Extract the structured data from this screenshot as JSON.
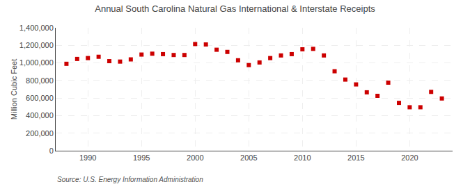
{
  "chart_data": {
    "type": "scatter",
    "title": "Annual South Carolina Natural Gas International & Interstate Receipts",
    "ylabel": "Million Cubic Feet",
    "annotations": [
      "Source: U.S. Energy Information Administration"
    ],
    "x": [
      1988,
      1989,
      1990,
      1991,
      1992,
      1993,
      1994,
      1995,
      1996,
      1997,
      1998,
      1999,
      2000,
      2001,
      2002,
      2003,
      2004,
      2005,
      2006,
      2007,
      2008,
      2009,
      2010,
      2011,
      2012,
      2013,
      2014,
      2015,
      2016,
      2017,
      2018,
      2019,
      2020,
      2021,
      2022,
      2023
    ],
    "values": [
      990000,
      1045000,
      1055000,
      1070000,
      1020000,
      1015000,
      1040000,
      1095000,
      1105000,
      1100000,
      1090000,
      1090000,
      1215000,
      1210000,
      1150000,
      1125000,
      1030000,
      975000,
      1005000,
      1055000,
      1085000,
      1100000,
      1155000,
      1160000,
      1085000,
      905000,
      810000,
      755000,
      665000,
      625000,
      775000,
      545000,
      495000,
      495000,
      670000,
      595000
    ],
    "color": "#cc0000",
    "marker": "square",
    "xlim": [
      1987,
      2024
    ],
    "xticks": [
      1990,
      1995,
      2000,
      2005,
      2010,
      2015,
      2020
    ],
    "ylim": [
      0,
      1400000
    ],
    "yticks": [
      0,
      {
        "value": 200000,
        "label": "200,000"
      },
      {
        "value": 400000,
        "label": "400,000"
      },
      {
        "value": 600000,
        "label": "600,000"
      },
      {
        "value": 800000,
        "label": "800,000"
      },
      {
        "value": 1000000,
        "label": "1,000,000"
      },
      {
        "value": 1200000,
        "label": "1,200,000"
      },
      {
        "value": 1400000,
        "label": "1,400,000"
      }
    ],
    "grid": true
  }
}
